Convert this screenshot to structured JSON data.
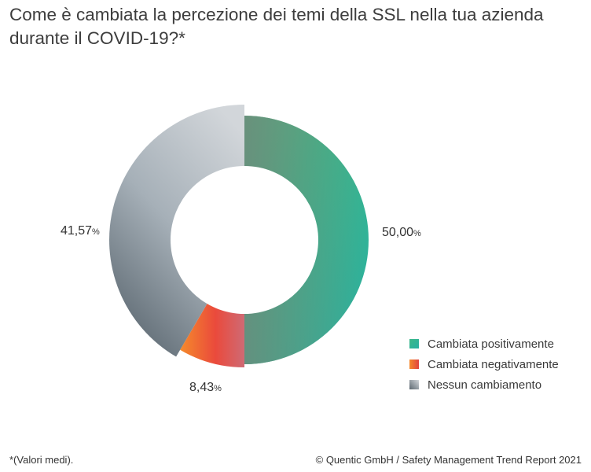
{
  "title_lines": [
    "Come è cambiata la percezione dei temi della SSL nella tua azienda",
    "durante il COVID-19?*"
  ],
  "footnote": "*(Valori medi).",
  "credit": "© Quentic GmbH / Safety Management Trend Report 2021",
  "chart_data": {
    "type": "pie",
    "style": "donut",
    "series": [
      {
        "name": "Cambiata positivamente",
        "value": 50.0,
        "label_number": "50,00",
        "label_unit": "%",
        "color": "#2fb59a"
      },
      {
        "name": "Cambiata negativamente",
        "value": 8.43,
        "label_number": "8,43",
        "label_unit": "%",
        "color": "#e8523f"
      },
      {
        "name": "Nessun cambiamento",
        "value": 41.57,
        "label_number": "41,57",
        "label_unit": "%",
        "color": "#8a97a0"
      }
    ],
    "legend_position": "bottom-right"
  }
}
